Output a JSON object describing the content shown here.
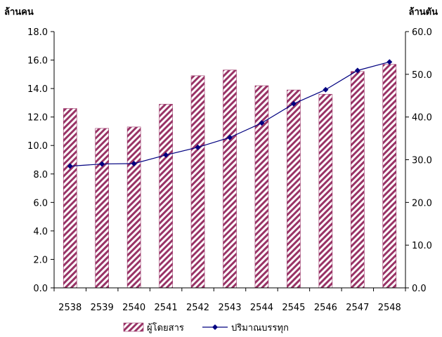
{
  "chart_data": {
    "type": "bar",
    "categories": [
      "2538",
      "2539",
      "2540",
      "2541",
      "2542",
      "2543",
      "2544",
      "2545",
      "2546",
      "2547",
      "2548"
    ],
    "series": [
      {
        "name": "ผู้โดยสาร",
        "kind": "bar",
        "axis": "left",
        "values": [
          12.6,
          11.2,
          11.3,
          12.9,
          14.9,
          15.3,
          14.2,
          13.9,
          13.6,
          15.2,
          15.7
        ]
      },
      {
        "name": "ปริมาณบรรทุก",
        "kind": "line",
        "axis": "right",
        "values": [
          28.5,
          29.0,
          29.1,
          31.1,
          32.9,
          35.2,
          38.6,
          43.1,
          46.4,
          50.9,
          52.9
        ]
      }
    ],
    "y_left": {
      "unit_label": "ล้านคน",
      "range": [
        0,
        18
      ],
      "ticks": [
        "0.0",
        "2.0",
        "4.0",
        "6.0",
        "8.0",
        "10.0",
        "12.0",
        "14.0",
        "16.0",
        "18.0"
      ]
    },
    "y_right": {
      "unit_label": "ล้านตัน",
      "range": [
        0,
        60
      ],
      "ticks": [
        "0.0",
        "10.0",
        "20.0",
        "30.0",
        "40.0",
        "50.0",
        "60.0"
      ]
    },
    "grid": false,
    "legend": "bottom",
    "colors": {
      "bar_stripe": "#993366",
      "bar_background": "#ffffff",
      "line": "#000080",
      "marker": "#000080"
    }
  }
}
